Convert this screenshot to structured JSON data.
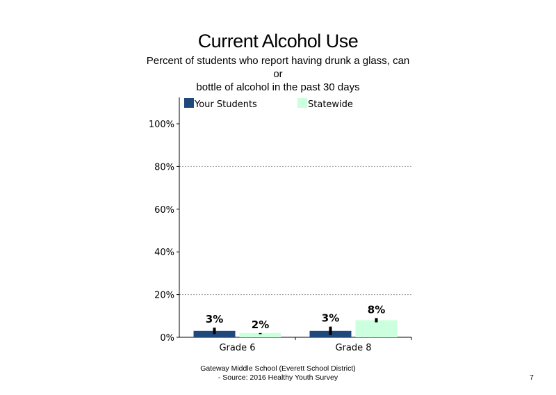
{
  "page": {
    "footer_line1": "Gateway Middle School (Everett School District)",
    "footer_line2": "- Source: 2016 Healthy Youth Survey",
    "page_number": "7"
  },
  "chart_data": {
    "type": "bar",
    "title": "Current Alcohol Use",
    "subtitle_lines": [
      "Percent of students who report having drunk a glass, can",
      "or",
      "bottle of alcohol in the past 30 days"
    ],
    "categories": [
      "Grade 6",
      "Grade 8"
    ],
    "series": [
      {
        "name": "Your Students",
        "color": "#1f497d",
        "values": [
          3,
          3
        ],
        "labels": [
          "3%",
          "3%"
        ],
        "error": [
          [
            1.5,
            4.5
          ],
          [
            1,
            5
          ]
        ]
      },
      {
        "name": "Statewide",
        "color": "#ccffdd",
        "values": [
          2,
          8
        ],
        "labels": [
          "2%",
          "8%"
        ],
        "error": [
          [
            1.5,
            2
          ],
          [
            7,
            9
          ]
        ]
      }
    ],
    "y_ticks": [
      0,
      20,
      40,
      60,
      80,
      100
    ],
    "y_tick_labels": [
      "0%",
      "20%",
      "40%",
      "60%",
      "80%",
      "100%"
    ],
    "gridlines_at": [
      20,
      80
    ],
    "ylim": [
      0,
      100
    ],
    "legend_position": "top",
    "grid": "dotted"
  }
}
